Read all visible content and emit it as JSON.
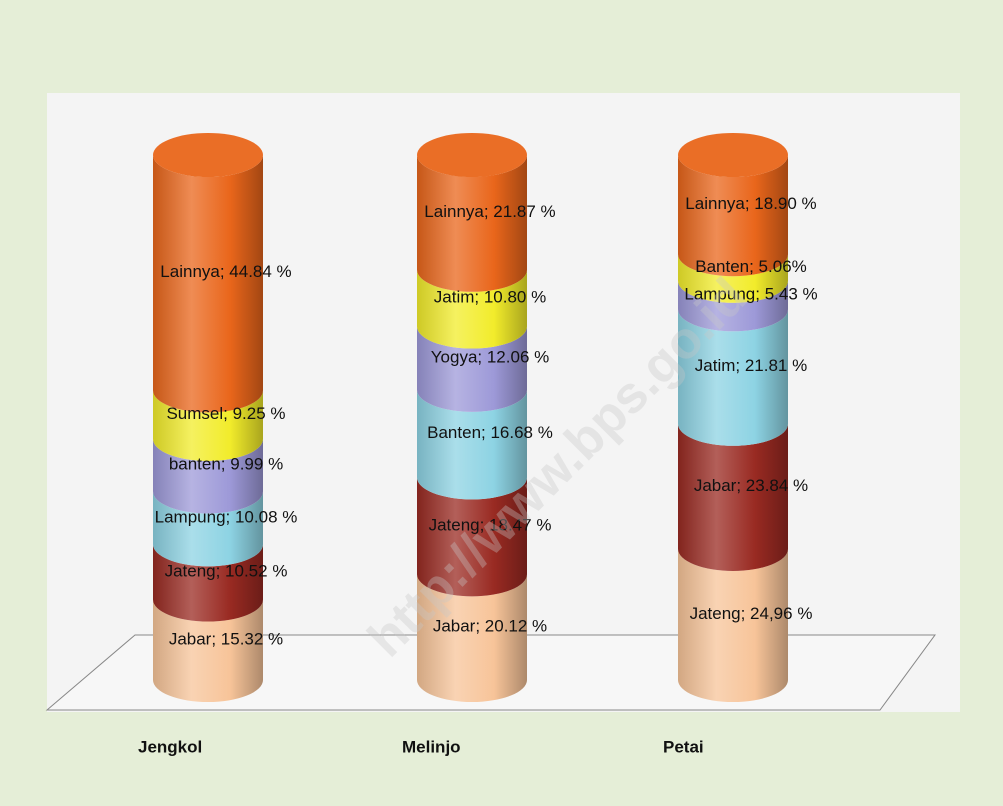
{
  "chart_data": {
    "type": "cylinder",
    "categories": [
      "Jengkol",
      "Melinjo",
      "Petai"
    ],
    "colors": [
      "#f7c499",
      "#992a22",
      "#8dd3e3",
      "#9d99d8",
      "#f2ec2b",
      "#e9661b"
    ],
    "columns": [
      {
        "names": [
          "Jabar",
          "Jateng",
          "Lampung",
          "banten",
          "Sumsel",
          "Lainnya"
        ],
        "values": [
          15.32,
          10.52,
          10.08,
          9.99,
          9.25,
          44.84
        ],
        "value_labels": [
          "Jabar; 15.32 %",
          "Jateng; 10.52 %",
          "Lampung; 10.08 %",
          "banten; 9.99 %",
          "Sumsel; 9.25 %",
          "Lainnya; 44.84 %"
        ]
      },
      {
        "names": [
          "Jabar",
          "Jateng",
          "Banten",
          "Yogya",
          "Jatim",
          "Lainnya"
        ],
        "values": [
          20.12,
          18.47,
          16.68,
          12.06,
          10.8,
          21.87
        ],
        "value_labels": [
          "Jabar; 20.12 %",
          "Jateng; 18.47 %",
          "Banten; 16.68 %",
          "Yogya; 12.06 %",
          "Jatim; 10.80 %",
          "Lainnya; 21.87 %"
        ]
      },
      {
        "names": [
          "Jateng",
          "Jabar",
          "Jatim",
          "Lampung",
          "Banten",
          "Lainnya"
        ],
        "values": [
          24.96,
          23.84,
          21.81,
          5.43,
          5.06,
          18.9
        ],
        "value_labels": [
          "Jateng; 24,96 %",
          "Jabar; 23.84 %",
          "Jatim; 21.81 %",
          "Lampung; 5.43 %",
          "Banten; 5.06%",
          "Lainnya; 18.90 %"
        ]
      }
    ],
    "watermark": "http://www.bps.go.id"
  }
}
